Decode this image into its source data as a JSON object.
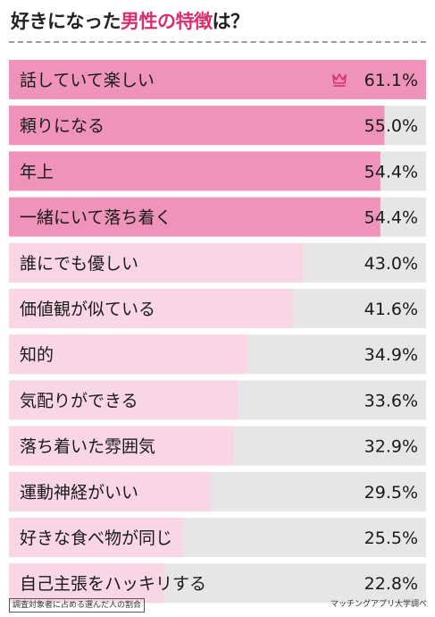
{
  "title": {
    "part1": "好きになった",
    "part2": "男性の特徴",
    "part3": "は？"
  },
  "chart_data": {
    "type": "bar",
    "orientation": "horizontal",
    "title": "好きになった男性の特徴は？",
    "categories": [
      "話していて楽しい",
      "頼りになる",
      "年上",
      "一緒にいて落ち着く",
      "誰にでも優しい",
      "価値観が似ている",
      "知的",
      "気配りができる",
      "落ち着いた雰囲気",
      "運動神経がいい",
      "好きな食べ物が同じ",
      "自己主張をハッキリする"
    ],
    "values": [
      61.1,
      55.0,
      54.4,
      54.4,
      43.0,
      41.6,
      34.9,
      33.6,
      32.9,
      29.5,
      25.5,
      22.8
    ],
    "value_labels": [
      "61.1%",
      "55.0%",
      "54.4%",
      "54.4%",
      "43.0%",
      "41.6%",
      "34.9%",
      "33.6%",
      "32.9%",
      "29.5%",
      "25.5%",
      "22.8%"
    ],
    "xlim": [
      0,
      61.1
    ],
    "top_count": 4,
    "crown_icon": "crown-icon",
    "colors": {
      "top": "#ef93bb",
      "rest": "#f9d6e5",
      "track": "#e6e6e6",
      "crown": "#d8306e",
      "highlight": "#d8306e"
    }
  },
  "footnote": "調査対象者に占める選んだ人の割合",
  "source": "マッチングアプリ大学調べ"
}
